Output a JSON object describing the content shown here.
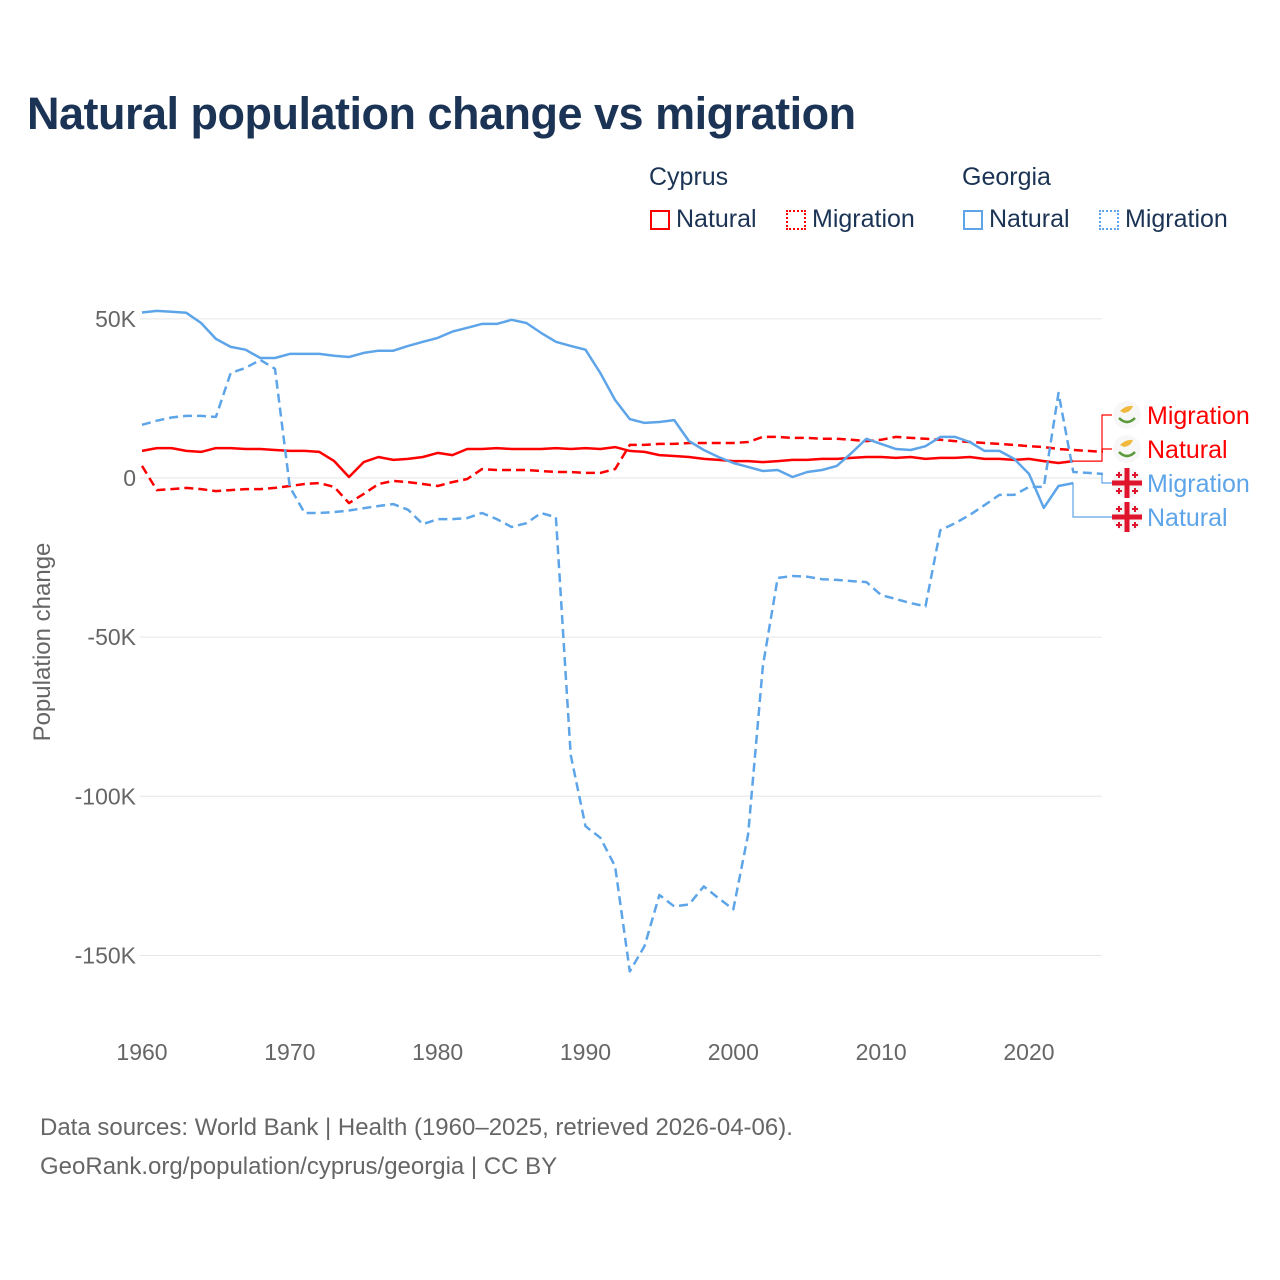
{
  "title": "Natural population change vs migration",
  "legend": {
    "groups": [
      {
        "name": "Cyprus",
        "items": [
          "Natural",
          "Migration"
        ],
        "color": "#ff0000"
      },
      {
        "name": "Georgia",
        "items": [
          "Natural",
          "Migration"
        ],
        "color": "#5da5e8"
      }
    ]
  },
  "footer": {
    "line1": "Data sources: World Bank | Health (1960–2025, retrieved 2026-04-06).",
    "line2": "GeoRank.org/population/cyprus/georgia | CC BY"
  },
  "chart_data": {
    "type": "line",
    "title": "Natural population change vs migration",
    "xlabel": "",
    "ylabel": "Population change",
    "xlim": [
      1960,
      2025
    ],
    "ylim": [
      -165000,
      55000
    ],
    "x_ticks": [
      1960,
      1970,
      1980,
      1990,
      2000,
      2010,
      2020
    ],
    "x_tick_labels": [
      "1960",
      "1970",
      "1980",
      "1990",
      "2000",
      "2010",
      "2020"
    ],
    "y_ticks": [
      50000,
      0,
      -50000,
      -100000,
      -150000
    ],
    "y_tick_labels": [
      "50K",
      "0",
      "-50K",
      "-100K",
      "-150K"
    ],
    "grid": true,
    "legend_position": "top-right",
    "units": "thousands",
    "series": [
      {
        "name": "Cyprus Natural",
        "country": "Cyprus",
        "kind": "Natural",
        "color": "#ff0000",
        "dash": false,
        "start": 1960,
        "values": [
          8.5,
          9.4,
          9.4,
          8.5,
          8.2,
          9.4,
          9.4,
          9.1,
          9.1,
          8.8,
          8.5,
          8.5,
          8.2,
          5.3,
          0.3,
          5.0,
          6.6,
          5.7,
          6.0,
          6.6,
          7.9,
          7.2,
          9.1,
          9.1,
          9.4,
          9.1,
          9.1,
          9.1,
          9.4,
          9.1,
          9.4,
          9.1,
          9.7,
          8.5,
          8.2,
          7.2,
          6.9,
          6.6,
          6.0,
          5.7,
          5.3,
          5.3,
          5.0,
          5.3,
          5.7,
          5.7,
          6.0,
          6.0,
          6.3,
          6.6,
          6.6,
          6.3,
          6.6,
          6.0,
          6.3,
          6.3,
          6.6,
          6.0,
          6.0,
          5.7,
          6.0,
          5.3,
          4.7,
          5.3
        ]
      },
      {
        "name": "Cyprus Migration",
        "country": "Cyprus",
        "kind": "Migration",
        "color": "#ff0000",
        "dash": true,
        "start": 1960,
        "values": [
          3.8,
          -3.8,
          -3.5,
          -3.1,
          -3.5,
          -4.1,
          -3.8,
          -3.5,
          -3.5,
          -3.1,
          -2.5,
          -1.9,
          -1.6,
          -2.8,
          -7.9,
          -5.0,
          -1.9,
          -0.9,
          -1.3,
          -1.9,
          -2.5,
          -1.3,
          -0.3,
          2.8,
          2.5,
          2.5,
          2.5,
          2.2,
          1.9,
          1.9,
          1.6,
          1.6,
          2.8,
          10.4,
          10.4,
          10.7,
          10.7,
          11.0,
          11.0,
          11.0,
          11.0,
          11.3,
          12.9,
          12.9,
          12.6,
          12.6,
          12.3,
          12.3,
          12.0,
          11.6,
          12.0,
          12.9,
          12.6,
          12.3,
          12.0,
          11.6,
          11.3,
          11.0,
          10.7,
          10.4,
          10.0,
          9.7,
          9.1,
          8.8,
          8.5,
          8.2
        ]
      },
      {
        "name": "Georgia Natural",
        "country": "Georgia",
        "kind": "Natural",
        "color": "#5da5e8",
        "dash": false,
        "start": 1960,
        "values": [
          52.0,
          52.5,
          52.2,
          51.9,
          48.7,
          43.7,
          41.2,
          40.3,
          37.7,
          37.7,
          39.0,
          39.0,
          39.0,
          38.4,
          38.0,
          39.3,
          40.0,
          40.0,
          41.5,
          42.8,
          44.0,
          46.0,
          47.2,
          48.4,
          48.4,
          49.7,
          48.7,
          45.6,
          42.8,
          41.5,
          40.3,
          33.0,
          24.5,
          18.5,
          17.3,
          17.6,
          18.2,
          11.6,
          8.8,
          6.6,
          4.7,
          3.5,
          2.2,
          2.5,
          0.3,
          1.9,
          2.5,
          3.8,
          7.9,
          12.3,
          10.7,
          9.1,
          8.8,
          10.0,
          12.9,
          12.9,
          11.3,
          8.5,
          8.5,
          6.0,
          1.3,
          -9.4,
          -2.5,
          -1.6
        ]
      },
      {
        "name": "Georgia Migration",
        "country": "Georgia",
        "kind": "Migration",
        "color": "#5da5e8",
        "dash": true,
        "start": 1960,
        "values": [
          16.7,
          18.0,
          19.0,
          19.5,
          19.5,
          19.2,
          33.0,
          34.6,
          37.1,
          34.3,
          -2.8,
          -11.0,
          -11.0,
          -10.7,
          -10.2,
          -9.5,
          -8.8,
          -8.2,
          -10.0,
          -14.5,
          -12.9,
          -12.9,
          -12.6,
          -11.0,
          -12.9,
          -15.4,
          -14.2,
          -11.0,
          -12.3,
          -87.0,
          -109.4,
          -113.0,
          -122.0,
          -155.0,
          -147.0,
          -131.0,
          -134.6,
          -134.0,
          -128.3,
          -132.0,
          -135.5,
          -112.0,
          -59.0,
          -31.4,
          -30.8,
          -31.0,
          -31.8,
          -32.0,
          -32.4,
          -32.7,
          -36.8,
          -38.0,
          -39.3,
          -40.3,
          -16.4,
          -14.2,
          -11.6,
          -8.5,
          -5.3,
          -5.3,
          -2.8,
          -2.8,
          26.7,
          1.9,
          1.6,
          1.3
        ]
      }
    ],
    "end_labels": [
      {
        "text": "Migration",
        "country": "Cyprus",
        "color": "#ff0000"
      },
      {
        "text": "Natural",
        "country": "Cyprus",
        "color": "#ff0000"
      },
      {
        "text": "Migration",
        "country": "Georgia",
        "color": "#5da5e8"
      },
      {
        "text": "Natural",
        "country": "Georgia",
        "color": "#5da5e8"
      }
    ]
  }
}
